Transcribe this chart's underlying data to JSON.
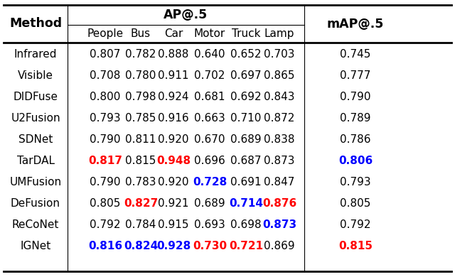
{
  "methods": [
    "Infrared",
    "Visible",
    "DIDFuse",
    "U2Fusion",
    "SDNet",
    "TarDAL",
    "UMFusion",
    "DeFusion",
    "ReCoNet",
    "IGNet"
  ],
  "ap_cols": [
    "People",
    "Bus",
    "Car",
    "Motor",
    "Truck",
    "Lamp"
  ],
  "data": [
    [
      0.807,
      0.782,
      0.888,
      0.64,
      0.652,
      0.703,
      0.745
    ],
    [
      0.708,
      0.78,
      0.911,
      0.702,
      0.697,
      0.865,
      0.777
    ],
    [
      0.8,
      0.798,
      0.924,
      0.681,
      0.692,
      0.843,
      0.79
    ],
    [
      0.793,
      0.785,
      0.916,
      0.663,
      0.71,
      0.872,
      0.789
    ],
    [
      0.79,
      0.811,
      0.92,
      0.67,
      0.689,
      0.838,
      0.786
    ],
    [
      0.817,
      0.815,
      0.948,
      0.696,
      0.687,
      0.873,
      0.806
    ],
    [
      0.79,
      0.783,
      0.92,
      0.728,
      0.691,
      0.847,
      0.793
    ],
    [
      0.805,
      0.827,
      0.921,
      0.689,
      0.714,
      0.876,
      0.805
    ],
    [
      0.792,
      0.784,
      0.915,
      0.693,
      0.698,
      0.873,
      0.792
    ],
    [
      0.816,
      0.824,
      0.928,
      0.73,
      0.721,
      0.869,
      0.815
    ]
  ],
  "colors": [
    [
      "black",
      "black",
      "black",
      "black",
      "black",
      "black",
      "black"
    ],
    [
      "black",
      "black",
      "black",
      "black",
      "black",
      "black",
      "black"
    ],
    [
      "black",
      "black",
      "black",
      "black",
      "black",
      "black",
      "black"
    ],
    [
      "black",
      "black",
      "black",
      "black",
      "black",
      "black",
      "black"
    ],
    [
      "black",
      "black",
      "black",
      "black",
      "black",
      "black",
      "black"
    ],
    [
      "red",
      "black",
      "red",
      "black",
      "black",
      "black",
      "blue"
    ],
    [
      "black",
      "black",
      "black",
      "blue",
      "black",
      "black",
      "black"
    ],
    [
      "black",
      "red",
      "black",
      "black",
      "blue",
      "red",
      "black"
    ],
    [
      "black",
      "black",
      "black",
      "black",
      "black",
      "blue",
      "black"
    ],
    [
      "blue",
      "blue",
      "blue",
      "red",
      "red",
      "black",
      "red"
    ]
  ],
  "bold_flags": [
    [
      false,
      false,
      false,
      false,
      false,
      false,
      false
    ],
    [
      false,
      false,
      false,
      false,
      false,
      false,
      false
    ],
    [
      false,
      false,
      false,
      false,
      false,
      false,
      false
    ],
    [
      false,
      false,
      false,
      false,
      false,
      false,
      false
    ],
    [
      false,
      false,
      false,
      false,
      false,
      false,
      false
    ],
    [
      true,
      false,
      true,
      false,
      false,
      false,
      true
    ],
    [
      false,
      false,
      false,
      true,
      false,
      false,
      false
    ],
    [
      false,
      true,
      false,
      false,
      true,
      true,
      false
    ],
    [
      false,
      false,
      false,
      false,
      false,
      true,
      false
    ],
    [
      true,
      true,
      true,
      true,
      true,
      false,
      true
    ]
  ],
  "bg_color": "#ffffff",
  "header_ap_label": "AP@.5",
  "header_map_label": "mAP@.5",
  "method_col_label": "Method",
  "lw_thick": 2.0,
  "lw_thin": 0.8,
  "fs_header": 12.5,
  "fs_subheader": 11.0,
  "fs_data": 11.0
}
